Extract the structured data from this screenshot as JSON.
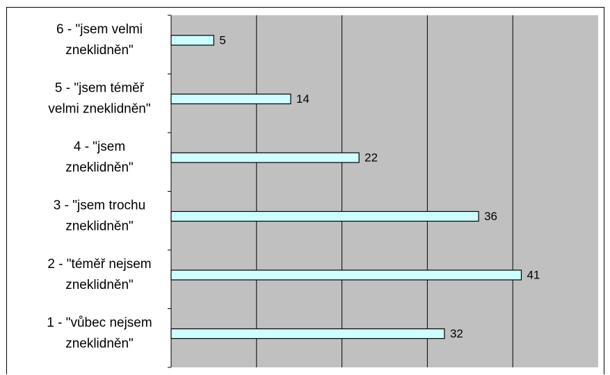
{
  "chart_data": {
    "type": "bar",
    "orientation": "horizontal",
    "categories": [
      [
        "6 - \"jsem velmi",
        "zneklidněn\""
      ],
      [
        "5 - \"jsem téměř",
        "velmi zneklidněn\""
      ],
      [
        "4 - \"jsem",
        "zneklidněn\""
      ],
      [
        "3 - \"jsem trochu",
        "zneklidněn\""
      ],
      [
        "2 - \"téměř nejsem",
        "zneklidněn\""
      ],
      [
        "1 - \"vůbec nejsem",
        "zneklidněn\""
      ]
    ],
    "values": [
      5,
      14,
      22,
      36,
      41,
      32
    ],
    "data_labels": [
      "5",
      "14",
      "22",
      "36",
      "41",
      "32"
    ],
    "xlim": [
      0,
      50
    ],
    "x_gridline_step": 10,
    "grid": true,
    "plot_background": "#c0c0c0",
    "bar_color": "#ccffff",
    "bar_edge_color": "#000000",
    "legend": "none"
  }
}
